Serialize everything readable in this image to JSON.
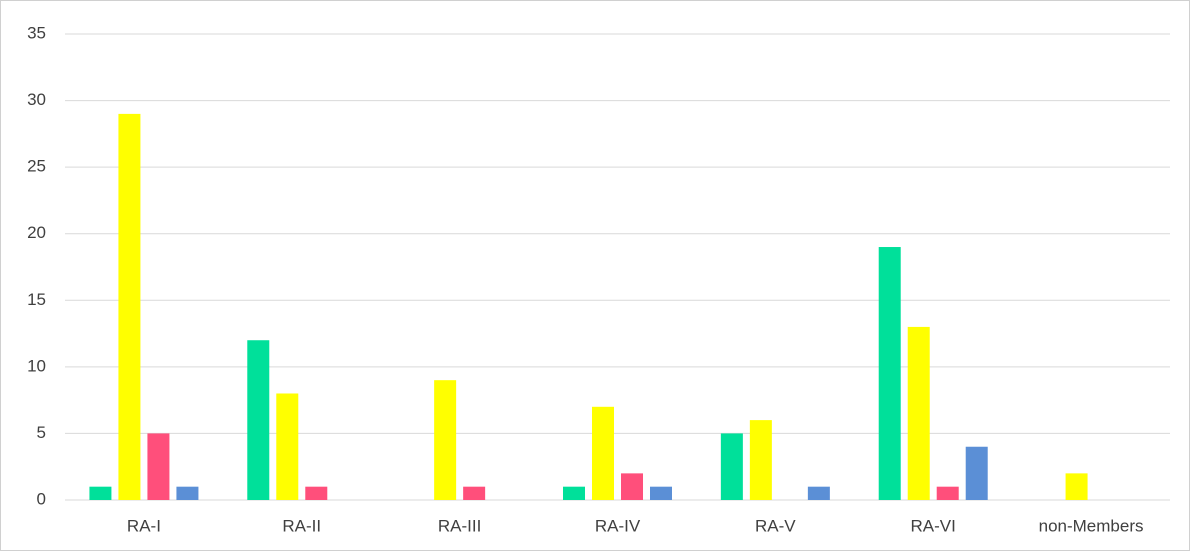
{
  "chart_data": {
    "type": "bar",
    "categories": [
      "RA-I",
      "RA-II",
      "RA-III",
      "RA-IV",
      "RA-V",
      "RA-VI",
      "non-Members"
    ],
    "series": [
      {
        "color": "#00e09a",
        "values": [
          1,
          12,
          0,
          1,
          5,
          19,
          0
        ]
      },
      {
        "color": "#ffff00",
        "values": [
          29,
          8,
          9,
          7,
          6,
          13,
          2
        ]
      },
      {
        "color": "#ff4f7b",
        "values": [
          5,
          1,
          1,
          2,
          0,
          1,
          0
        ]
      },
      {
        "color": "#5b8fd6",
        "values": [
          1,
          0,
          0,
          1,
          1,
          4,
          0
        ]
      }
    ],
    "ylim": [
      0,
      35
    ],
    "yticks": [
      0,
      5,
      10,
      15,
      20,
      25,
      30,
      35
    ],
    "grid": true
  }
}
